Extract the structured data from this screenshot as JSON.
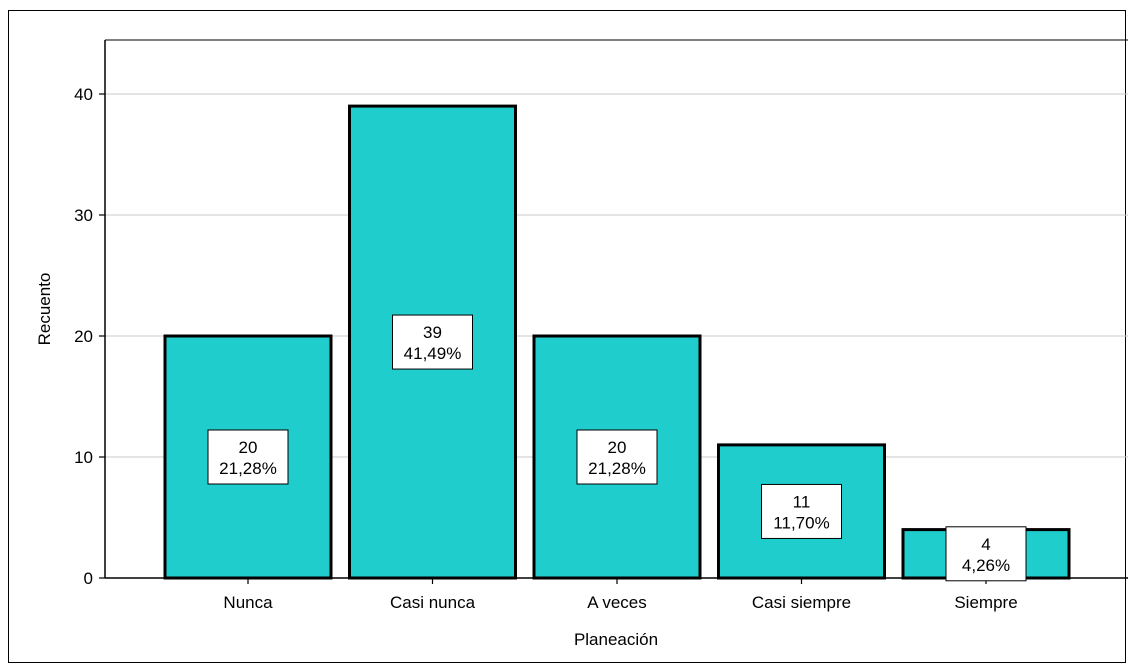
{
  "chart_data": {
    "type": "bar",
    "title": "",
    "xlabel": "Planeación",
    "ylabel": "Recuento",
    "categories": [
      "Nunca",
      "Casi nunca",
      "A veces",
      "Casi siempre",
      "Siempre"
    ],
    "values": [
      20,
      39,
      20,
      11,
      4
    ],
    "value_labels": [
      "20",
      "39",
      "20",
      "11",
      "4"
    ],
    "percent_labels": [
      "21,28%",
      "41,49%",
      "21,28%",
      "11,70%",
      "4,26%"
    ],
    "yticks": [
      0,
      10,
      20,
      30,
      40
    ],
    "ylim": [
      0,
      44.5
    ],
    "grid": true,
    "colors": {
      "bar_fill": "#1FCDCD",
      "bar_stroke": "#000000",
      "gridline": "#C8C8C8",
      "axis": "#000000"
    }
  }
}
